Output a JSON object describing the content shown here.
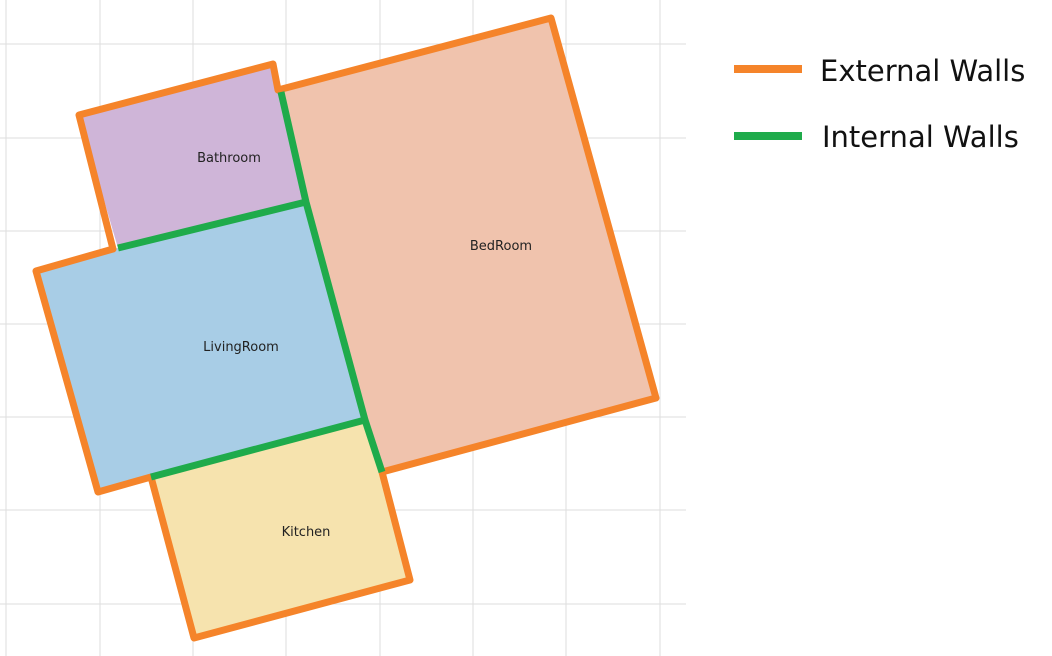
{
  "rooms": [
    {
      "id": "bathroom",
      "label": "Bathroom",
      "fill": "#cfb5d8"
    },
    {
      "id": "bedroom",
      "label": "BedRoom",
      "fill": "#f0c3ad"
    },
    {
      "id": "livingroom",
      "label": "LivingRoom",
      "fill": "#a8cde6"
    },
    {
      "id": "kitchen",
      "label": "Kitchen",
      "fill": "#f6e3ae"
    }
  ],
  "legend": {
    "external": {
      "label": "External Walls",
      "color": "#f5842a"
    },
    "internal": {
      "label": "Internal Walls",
      "color": "#1fab4b"
    }
  },
  "grid_color": "#dddddd"
}
